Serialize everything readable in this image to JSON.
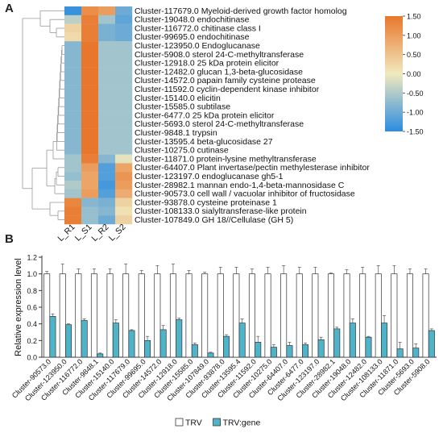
{
  "panels": {
    "a": "A",
    "b": "B"
  },
  "chart_data": [
    {
      "type": "heatmap",
      "columns": [
        "L_R1",
        "L_S1",
        "L_R2",
        "L_S2"
      ],
      "rows": [
        "Cluster-117679.0 Myeloid-derived growth factor homolog",
        "Cluster-19048.0 endochitinase",
        "Cluster-116772.0 chitinase class I",
        "Cluster-99695.0 endochitinase",
        "Cluster-123950.0 Endoglucanase",
        "Cluster-5908.0 sterol 24-C-methyltransferase",
        "Cluster-12918.0 25 kDa protein elicitor",
        "Cluster-12482.0 glucan 1,3-beta-glucosidase",
        "Cluster-14572.0 papain family cysteine protease",
        "Cluster-11592.0 cyclin-dependent kinase inhibitor",
        "Cluster-15140.0 elicitin",
        "Cluster-15585.0 subtilase",
        "Cluster-6477.0 25 kDa protein elicitor",
        "Cluster-5693.0 sterol 24-C-methyltransferase",
        "Cluster-9848.1 trypsin",
        "Cluster-13595.4 beta-glucosidase 27",
        "Cluster-10275.0 cutinase",
        "Cluster-11871.0 protein-lysine methyltransferase",
        "Cluster-64407.0 Plant invertase/pectin methylesterase inhibitor",
        "Cluster-123197.0 endoglucanase gh5-1",
        "Cluster-28982.1 mannan endo-1,4-beta-mannosidase C",
        "Cluster-90573.0 cell wall / vacuolar inhibitor of fructosidase",
        "Cluster-93878.0 cysteine proteinase 1",
        "Cluster-108133.0 sialyltransferase-like protein",
        "Cluster-107849.0 GH 18//Cellulase (GH 5)"
      ],
      "values": [
        [
          -1.4,
          1.2,
          1.0,
          -1.0
        ],
        [
          -0.4,
          1.4,
          -0.6,
          -1.1
        ],
        [
          0.3,
          1.4,
          -0.9,
          -1.0
        ],
        [
          0.2,
          1.4,
          -0.9,
          -1.0
        ],
        [
          -0.8,
          1.5,
          -0.6,
          -0.6
        ],
        [
          -0.8,
          1.5,
          -0.6,
          -0.6
        ],
        [
          -0.8,
          1.5,
          -0.6,
          -0.6
        ],
        [
          -0.8,
          1.5,
          -0.6,
          -0.6
        ],
        [
          -0.8,
          1.5,
          -0.6,
          -0.6
        ],
        [
          -0.8,
          1.5,
          -0.6,
          -0.6
        ],
        [
          -0.8,
          1.5,
          -0.6,
          -0.6
        ],
        [
          -0.8,
          1.5,
          -0.6,
          -0.6
        ],
        [
          -0.8,
          1.5,
          -0.6,
          -0.6
        ],
        [
          -0.8,
          1.5,
          -0.6,
          -0.6
        ],
        [
          -0.8,
          1.5,
          -0.6,
          -0.6
        ],
        [
          -0.8,
          1.5,
          -0.6,
          -0.6
        ],
        [
          -0.8,
          1.5,
          -0.6,
          -0.6
        ],
        [
          -0.6,
          1.4,
          -0.8,
          -0.1
        ],
        [
          -0.6,
          1.0,
          -1.2,
          0.9
        ],
        [
          -0.7,
          0.9,
          -1.2,
          1.1
        ],
        [
          -0.5,
          0.9,
          -1.3,
          1.0
        ],
        [
          -0.6,
          1.0,
          -1.2,
          0.8
        ],
        [
          1.3,
          -0.8,
          -0.9,
          0.3
        ],
        [
          1.4,
          -0.7,
          -0.8,
          0.1
        ],
        [
          1.4,
          -0.7,
          -1.0,
          0.3
        ]
      ],
      "scale": {
        "min": -1.5,
        "max": 1.5,
        "ticks": [
          "1.50",
          "1.00",
          "0.50",
          "0.00",
          "-0.50",
          "-1.00",
          "-1.50"
        ]
      },
      "colors": {
        "low": "#2b8ce0",
        "mid": "#f1e9be",
        "high": "#e8772d"
      }
    },
    {
      "type": "bar",
      "ylabel": "Relative expression level",
      "ylim": [
        0,
        1.2
      ],
      "yticks": [
        "0.0",
        "0.2",
        "0.4",
        "0.6",
        "0.8",
        "1.0",
        "1.2"
      ],
      "categories": [
        "Cluster-90573.0",
        "Cluster-123950.0",
        "Cluster-116772.0",
        "Cluster-9848.1",
        "Cluster-15140.0",
        "Cluster-117679.0",
        "Cluster-99695.0",
        "Cluster-14572.0",
        "Cluster-12918.0",
        "Cluster-15585.0",
        "Cluster-107849.0",
        "Cluster-93878.0",
        "Cluster-13595.4",
        "Cluster-11592.0",
        "Cluster-10275.0",
        "Cluster-64407.0",
        "Cluster-6477.0",
        "Cluster-123197.0",
        "Cluster-28982.1",
        "Cluster-19048.0",
        "Cluster-12482.0",
        "Cluster-108133.0",
        "Cluster-11871.0",
        "Cluster-5693.0",
        "Cluster-5908.0"
      ],
      "series": [
        {
          "name": "TRV",
          "color": "#ffffff",
          "values": [
            1,
            1,
            1,
            1,
            1,
            1,
            1,
            1,
            1,
            1,
            1,
            1,
            1,
            1,
            1,
            1,
            1,
            1,
            1,
            1,
            1,
            1,
            1,
            1,
            1
          ],
          "errors": [
            0.03,
            0.12,
            0.06,
            0.06,
            0.06,
            0.12,
            0.04,
            0.1,
            0.12,
            0.04,
            0.02,
            0.08,
            0.08,
            0.06,
            0.08,
            0.1,
            0.08,
            0.08,
            0.01,
            0.05,
            0.08,
            0.1,
            0.1,
            0.06,
            0.06
          ]
        },
        {
          "name": "TRV:gene",
          "color": "#4fb3c9",
          "values": [
            0.49,
            0.39,
            0.44,
            0.04,
            0.41,
            0.32,
            0.2,
            0.33,
            0.45,
            0.15,
            0.05,
            0.25,
            0.41,
            0.18,
            0.12,
            0.14,
            0.15,
            0.21,
            0.34,
            0.41,
            0.24,
            0.41,
            0.1,
            0.11,
            0.32
          ],
          "errors": [
            0.03,
            0.01,
            0.02,
            0.01,
            0.04,
            0.01,
            0.05,
            0.05,
            0.02,
            0.02,
            0.01,
            0.02,
            0.05,
            0.07,
            0.03,
            0.04,
            0.02,
            0.03,
            0.02,
            0.05,
            0.01,
            0.09,
            0.08,
            0.05,
            0.02
          ]
        }
      ]
    }
  ]
}
